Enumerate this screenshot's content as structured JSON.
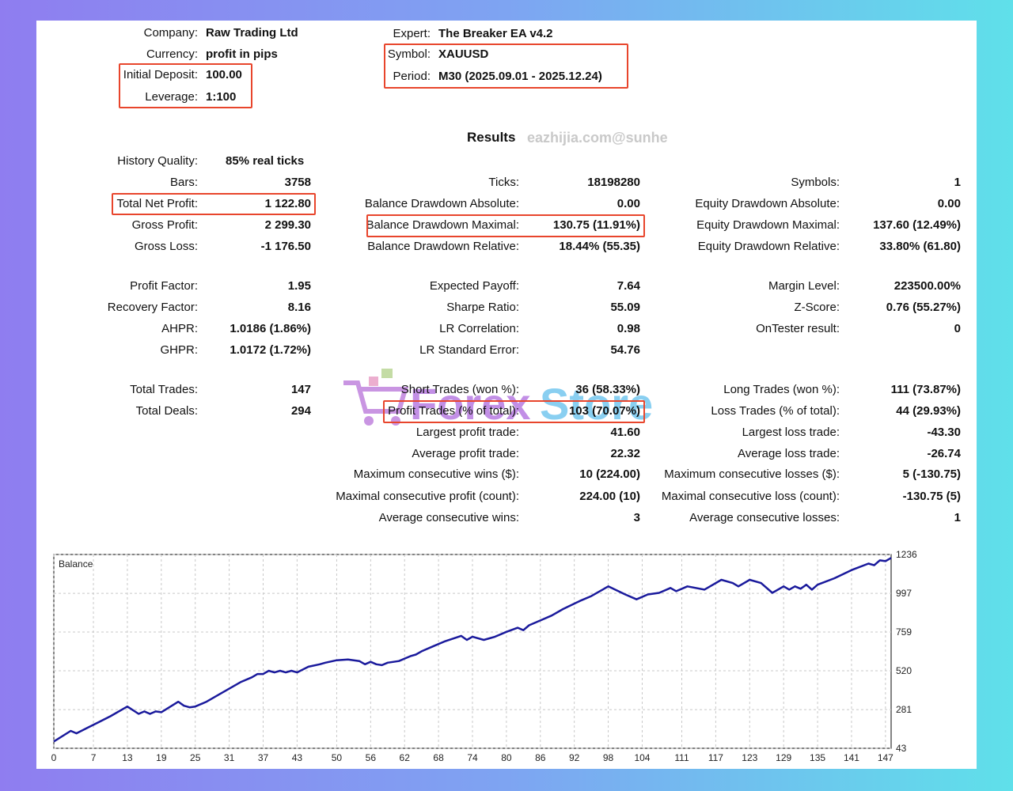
{
  "header": {
    "company_label": "Company:",
    "company": "Raw Trading Ltd",
    "currency_label": "Currency:",
    "currency": "profit in pips",
    "deposit_label": "Initial Deposit:",
    "deposit": "100.00",
    "leverage_label": "Leverage:",
    "leverage": "1:100",
    "expert_label": "Expert:",
    "expert": "The Breaker EA v4.2",
    "symbol_label": "Symbol:",
    "symbol": "XAUUSD",
    "period_label": "Period:",
    "period": "M30 (2025.09.01 - 2025.12.24)"
  },
  "results_title": "Results",
  "watermark": "eazhijia.com@sunhe",
  "logo_text": "Forex Store",
  "stats": {
    "history_quality": {
      "label": "History Quality:",
      "value": "85% real ticks"
    },
    "col1": [
      {
        "label": "Bars:",
        "value": "3758"
      },
      {
        "label": "Total Net Profit:",
        "value": "1 122.80"
      },
      {
        "label": "Gross Profit:",
        "value": "2 299.30"
      },
      {
        "label": "Gross Loss:",
        "value": "-1 176.50"
      },
      {
        "label": "Profit Factor:",
        "value": "1.95"
      },
      {
        "label": "Recovery Factor:",
        "value": "8.16"
      },
      {
        "label": "AHPR:",
        "value": "1.0186 (1.86%)"
      },
      {
        "label": "GHPR:",
        "value": "1.0172 (1.72%)"
      },
      {
        "label": "Total Trades:",
        "value": "147"
      },
      {
        "label": "Total Deals:",
        "value": "294"
      }
    ],
    "col2": [
      {
        "label": "Ticks:",
        "value": "18198280"
      },
      {
        "label": "Balance Drawdown Absolute:",
        "value": "0.00"
      },
      {
        "label": "Balance Drawdown Maximal:",
        "value": "130.75 (11.91%)"
      },
      {
        "label": "Balance Drawdown Relative:",
        "value": "18.44% (55.35)"
      },
      {
        "label": "Expected Payoff:",
        "value": "7.64"
      },
      {
        "label": "Sharpe Ratio:",
        "value": "55.09"
      },
      {
        "label": "LR Correlation:",
        "value": "0.98"
      },
      {
        "label": "LR Standard Error:",
        "value": "54.76"
      },
      {
        "label": "Short Trades (won %):",
        "value": "36 (58.33%)"
      },
      {
        "label": "Profit Trades (% of total):",
        "value": "103 (70.07%)"
      },
      {
        "label": "Largest profit trade:",
        "value": "41.60"
      },
      {
        "label": "Average profit trade:",
        "value": "22.32"
      },
      {
        "label": "Maximum consecutive wins ($):",
        "value": "10 (224.00)"
      },
      {
        "label": "Maximal consecutive profit (count):",
        "value": "224.00 (10)"
      },
      {
        "label": "Average consecutive wins:",
        "value": "3"
      }
    ],
    "col3": [
      {
        "label": "Symbols:",
        "value": "1"
      },
      {
        "label": "Equity Drawdown Absolute:",
        "value": "0.00"
      },
      {
        "label": "Equity Drawdown Maximal:",
        "value": "137.60 (12.49%)"
      },
      {
        "label": "Equity Drawdown Relative:",
        "value": "33.80% (61.80)"
      },
      {
        "label": "Margin Level:",
        "value": "223500.00%"
      },
      {
        "label": "Z-Score:",
        "value": "0.76 (55.27%)"
      },
      {
        "label": "OnTester result:",
        "value": "0"
      },
      {
        "label": "Long Trades (won %):",
        "value": "111 (73.87%)"
      },
      {
        "label": "Loss Trades (% of total):",
        "value": "44 (29.93%)"
      },
      {
        "label": "Largest loss trade:",
        "value": "-43.30"
      },
      {
        "label": "Average loss trade:",
        "value": "-26.74"
      },
      {
        "label": "Maximum consecutive losses ($):",
        "value": "5 (-130.75)"
      },
      {
        "label": "Maximal consecutive loss (count):",
        "value": "-130.75 (5)"
      },
      {
        "label": "Average consecutive losses:",
        "value": "1"
      }
    ]
  },
  "chart_data": {
    "type": "line",
    "title": "Balance",
    "xlabel": "",
    "ylabel": "",
    "x_ticks": [
      0,
      7,
      13,
      19,
      25,
      31,
      37,
      43,
      50,
      56,
      62,
      68,
      74,
      80,
      86,
      92,
      98,
      104,
      111,
      117,
      123,
      129,
      135,
      141,
      147
    ],
    "y_ticks": [
      43,
      281,
      520,
      759,
      997,
      1236
    ],
    "xlim": [
      0,
      148
    ],
    "ylim": [
      43,
      1236
    ],
    "grid": true,
    "line_color": "#1a1a9c",
    "series": [
      {
        "x": [
          0,
          3,
          4,
          6,
          8,
          10,
          13,
          15,
          16,
          17,
          18,
          19,
          22,
          23,
          24,
          25,
          27,
          29,
          30,
          33,
          35,
          36,
          37,
          38,
          39,
          40,
          41,
          42,
          43,
          45,
          47,
          48,
          50,
          52,
          54,
          55,
          56,
          57,
          58,
          59,
          61,
          63,
          64,
          65,
          67,
          69,
          72,
          73,
          74,
          76,
          77,
          78,
          80,
          82,
          83,
          84,
          86,
          88,
          90,
          93,
          95,
          98,
          101,
          103,
          105,
          107,
          109,
          110,
          112,
          115,
          116,
          118,
          120,
          121,
          123,
          125,
          127,
          129,
          130,
          131,
          132,
          133,
          134,
          135,
          138,
          141,
          144,
          145,
          146,
          147,
          148
        ],
        "y": [
          85,
          150,
          135,
          170,
          205,
          240,
          300,
          255,
          270,
          255,
          270,
          265,
          330,
          305,
          295,
          300,
          330,
          370,
          390,
          450,
          480,
          500,
          500,
          520,
          510,
          520,
          510,
          520,
          510,
          545,
          560,
          570,
          585,
          590,
          580,
          560,
          575,
          560,
          555,
          570,
          580,
          610,
          620,
          640,
          670,
          700,
          735,
          710,
          730,
          710,
          720,
          730,
          760,
          785,
          770,
          800,
          830,
          860,
          900,
          950,
          980,
          1040,
          990,
          960,
          990,
          1000,
          1030,
          1010,
          1040,
          1020,
          1040,
          1080,
          1060,
          1040,
          1080,
          1060,
          1000,
          1040,
          1020,
          1040,
          1025,
          1050,
          1020,
          1050,
          1090,
          1140,
          1180,
          1170,
          1200,
          1195,
          1215
        ]
      }
    ]
  }
}
